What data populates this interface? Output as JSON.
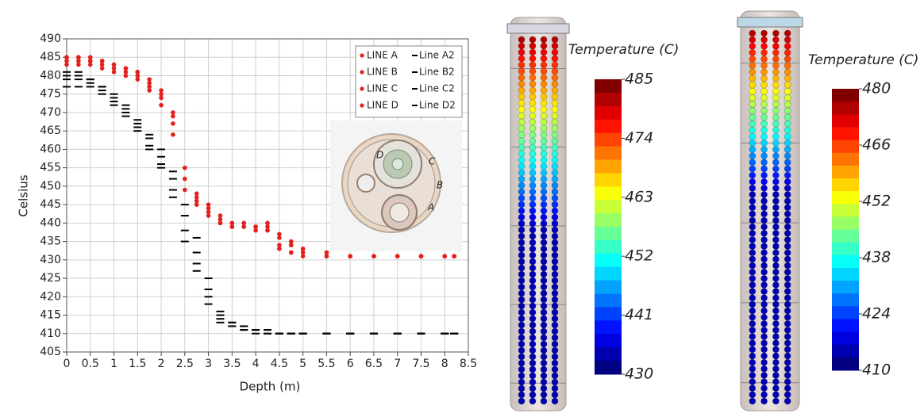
{
  "chart_data": [
    {
      "type": "scatter",
      "xlabel": "Depth (m)",
      "ylabel": "Celsius",
      "x": [
        0,
        0.25,
        0.5,
        0.75,
        1,
        1.25,
        1.5,
        1.75,
        2,
        2.25,
        2.5,
        2.75,
        3,
        3.25,
        3.5,
        3.75,
        4,
        4.25,
        4.5,
        4.75,
        5,
        5.5,
        6,
        6.5,
        7,
        7.5,
        8,
        8.2
      ],
      "series": [
        {
          "name": "LINE A",
          "color": "#e3211c",
          "marker": "dot",
          "values": [
            485,
            485,
            485,
            484,
            483,
            482,
            481,
            479,
            476,
            470,
            455,
            447,
            444,
            441,
            440,
            440,
            439,
            439,
            436,
            434,
            433,
            432,
            431,
            431,
            431,
            431,
            431,
            431
          ]
        },
        {
          "name": "LINE B",
          "color": "#e3211c",
          "marker": "dot",
          "values": [
            484,
            484,
            484,
            483,
            482,
            481,
            480,
            477,
            474,
            467,
            452,
            446,
            443,
            440,
            439,
            439,
            439,
            438,
            434,
            432,
            432,
            431,
            431,
            431,
            431,
            431,
            431,
            431
          ]
        },
        {
          "name": "LINE C",
          "color": "#e3211c",
          "marker": "dot",
          "values": [
            483,
            483,
            483,
            482,
            481,
            480,
            479,
            476,
            472,
            464,
            449,
            445,
            442,
            440,
            439,
            439,
            438,
            438,
            433,
            432,
            431,
            431,
            431,
            431,
            431,
            431,
            431,
            431
          ]
        },
        {
          "name": "LINE D",
          "color": "#e3211c",
          "marker": "dot",
          "values": [
            485,
            485,
            484,
            484,
            483,
            482,
            481,
            478,
            475,
            469,
            455,
            448,
            445,
            442,
            440,
            440,
            439,
            440,
            437,
            435,
            433,
            432,
            431,
            431,
            431,
            431,
            431,
            431
          ]
        },
        {
          "name": "Line A2",
          "color": "#000000",
          "marker": "dash",
          "values": [
            481,
            481,
            479,
            477,
            475,
            472,
            468,
            464,
            460,
            454,
            445,
            436,
            425,
            416,
            413,
            412,
            411,
            411,
            410,
            410,
            410,
            410,
            410,
            410,
            410,
            410,
            410,
            410
          ]
        },
        {
          "name": "Line B2",
          "color": "#000000",
          "marker": "dash",
          "values": [
            480,
            480,
            479,
            477,
            474,
            471,
            467,
            463,
            458,
            452,
            442,
            432,
            422,
            415,
            413,
            412,
            411,
            411,
            410,
            410,
            410,
            410,
            410,
            410,
            410,
            410,
            410,
            410
          ]
        },
        {
          "name": "Line C2",
          "color": "#000000",
          "marker": "dash",
          "values": [
            479,
            479,
            478,
            476,
            473,
            470,
            466,
            461,
            456,
            449,
            438,
            429,
            420,
            414,
            412,
            411,
            411,
            410,
            410,
            410,
            410,
            410,
            410,
            410,
            410,
            410,
            410,
            410
          ]
        },
        {
          "name": "Line D2",
          "color": "#000000",
          "marker": "dash",
          "values": [
            477,
            477,
            477,
            475,
            472,
            469,
            465,
            460,
            455,
            447,
            435,
            427,
            418,
            413,
            412,
            411,
            410,
            410,
            410,
            410,
            410,
            410,
            410,
            410,
            410,
            410,
            410,
            410
          ]
        }
      ],
      "xlim": [
        0,
        8.5
      ],
      "xticks": [
        0,
        0.5,
        1,
        1.5,
        2,
        2.5,
        3,
        3.5,
        4,
        4.5,
        5,
        5.5,
        6,
        6.5,
        7,
        7.5,
        8,
        8.5
      ],
      "ylim": [
        405,
        490
      ],
      "yticks": [
        405,
        410,
        415,
        420,
        425,
        430,
        435,
        440,
        445,
        450,
        455,
        460,
        465,
        470,
        475,
        480,
        485,
        490
      ],
      "grid": true,
      "legend": "upper right",
      "annotations": [
        "D",
        "C",
        "B",
        "A"
      ]
    },
    {
      "type": "colorbar",
      "title": "Temperature (C)",
      "ylim": [
        430,
        485
      ],
      "yticks": [
        430,
        441,
        452,
        463,
        474,
        485
      ]
    },
    {
      "type": "colorbar",
      "title": "Temperature (C)",
      "ylim": [
        410,
        480
      ],
      "yticks": [
        410,
        424,
        438,
        452,
        466,
        480
      ]
    }
  ]
}
